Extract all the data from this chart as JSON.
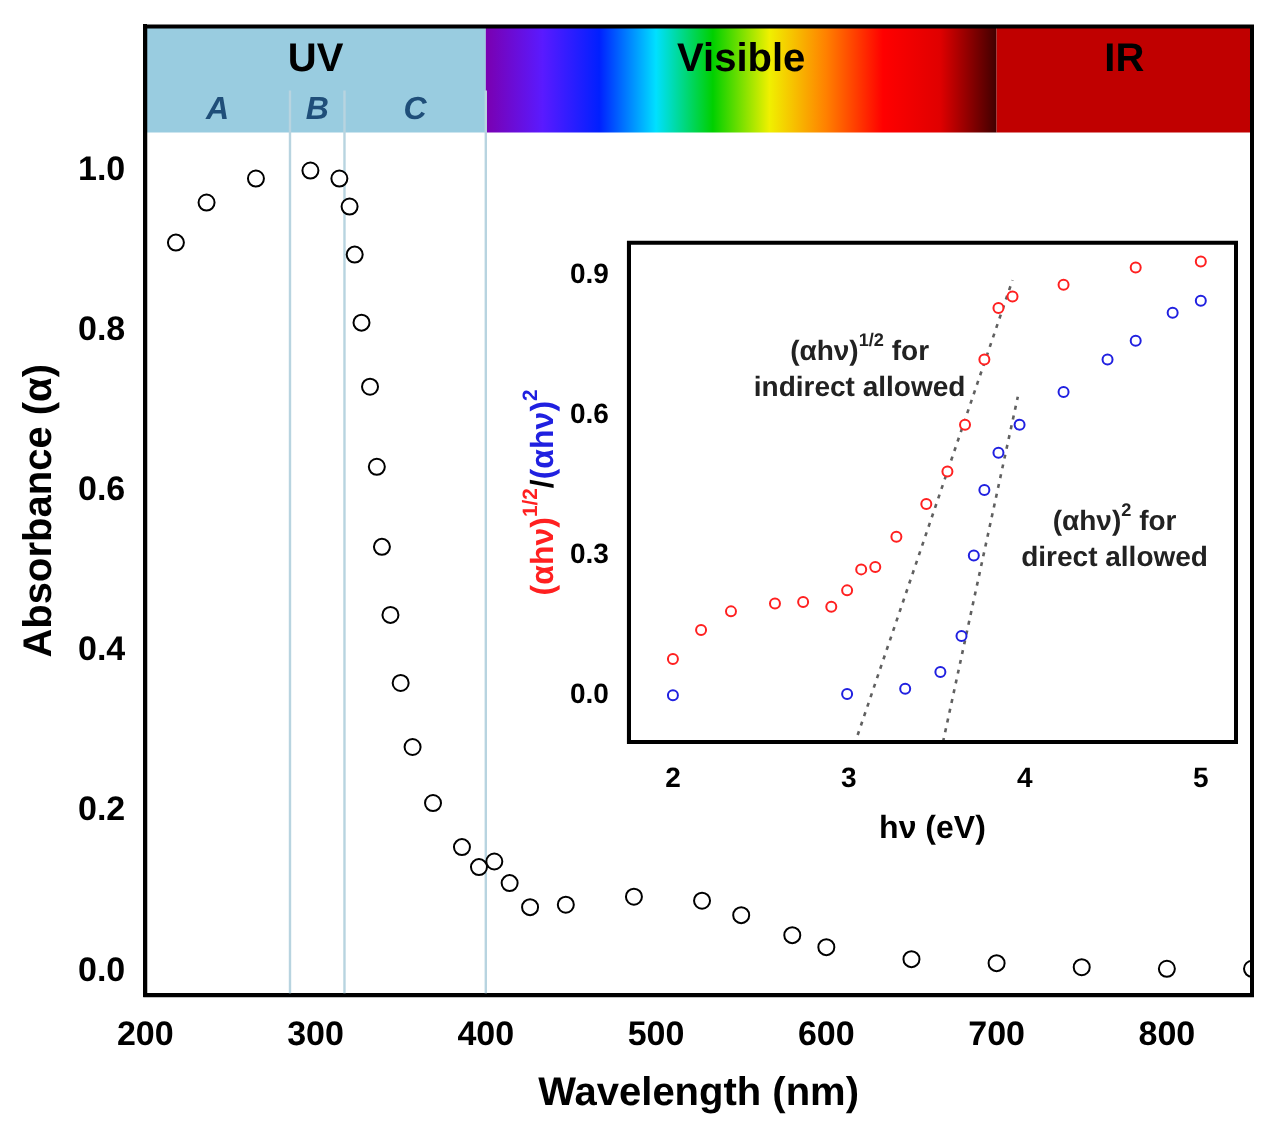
{
  "chart_data": [
    {
      "type": "scatter",
      "xlabel": "Wavelength (nm)",
      "ylabel": "Absorbance (α)",
      "xlim": [
        200,
        850
      ],
      "ylim": [
        -0.03,
        1.18
      ],
      "xticks": [
        200,
        300,
        400,
        500,
        600,
        700,
        800
      ],
      "yticks": [
        {
          "value": 0,
          "label": "0.0"
        },
        {
          "value": 0.2,
          "label": "0.2"
        },
        {
          "value": 0.4,
          "label": "0.4"
        },
        {
          "value": 0.6,
          "label": "0.6"
        },
        {
          "value": 0.8,
          "label": "0.8"
        },
        {
          "value": 1,
          "label": "1.0"
        }
      ],
      "marker": "circle",
      "series": [
        {
          "color": "#000000",
          "x": [
            218,
            236,
            265,
            297,
            314,
            320,
            323,
            327,
            332,
            336,
            339,
            344,
            350,
            357,
            369,
            386,
            396,
            405,
            414,
            426,
            447,
            487,
            527,
            550,
            580,
            600,
            650,
            700,
            750,
            800,
            850
          ],
          "values": [
            0.91,
            0.96,
            0.99,
            1.0,
            0.99,
            0.955,
            0.895,
            0.81,
            0.73,
            0.63,
            0.53,
            0.445,
            0.36,
            0.28,
            0.21,
            0.155,
            0.13,
            0.137,
            0.11,
            0.08,
            0.083,
            0.093,
            0.088,
            0.07,
            0.045,
            0.03,
            0.015,
            0.01,
            0.005,
            0.003,
            0.003
          ]
        }
      ],
      "bands": [
        {
          "axis": "x",
          "from": 200,
          "to": 400,
          "label": "UV",
          "color": "#99cce0"
        },
        {
          "axis": "x",
          "from": 400,
          "to": 700,
          "label": "Visible"
        },
        {
          "axis": "x",
          "from": 700,
          "to": 850,
          "label": "IR",
          "color": "#c00000"
        }
      ],
      "ref_lines": [
        {
          "axis": "x",
          "value": 285,
          "color": "#b8d4e0"
        },
        {
          "axis": "x",
          "value": 317,
          "color": "#b8d4e0"
        },
        {
          "axis": "x",
          "value": 400,
          "color": "#b8d4e0"
        }
      ],
      "annotations": [
        "A",
        "B",
        "C"
      ]
    },
    {
      "type": "scatter",
      "xlabel": "hν (eV)",
      "ylabel": "(αhν)$^{1/2}$/(αhν)$^{2}$",
      "xlim": [
        1.75,
        5.2
      ],
      "ylim": [
        -0.1,
        0.97
      ],
      "xticks": [
        2,
        3,
        4,
        5
      ],
      "yticks": [
        {
          "value": 0,
          "label": "0.0"
        },
        0.3,
        0.6,
        0.9
      ],
      "marker": "circle",
      "series": [
        {
          "color": "#ff2020",
          "x": [
            2.0,
            2.16,
            2.33,
            2.58,
            2.74,
            2.9,
            2.99,
            3.07,
            3.15,
            3.27,
            3.44,
            3.56,
            3.66,
            3.77,
            3.85,
            3.93,
            4.22,
            4.63,
            5.0
          ],
          "values": [
            0.078,
            0.14,
            0.18,
            0.197,
            0.2,
            0.19,
            0.225,
            0.27,
            0.275,
            0.34,
            0.41,
            0.48,
            0.58,
            0.72,
            0.83,
            0.855,
            0.88,
            0.917,
            0.93
          ]
        },
        {
          "color": "#2020e0",
          "x": [
            2.0,
            2.99,
            3.32,
            3.52,
            3.64,
            3.71,
            3.77,
            3.85,
            3.97,
            4.22,
            4.47,
            4.63,
            4.84,
            5.0
          ],
          "values": [
            0.0,
            0.003,
            0.014,
            0.05,
            0.127,
            0.3,
            0.44,
            0.52,
            0.58,
            0.65,
            0.72,
            0.76,
            0.82,
            0.846
          ]
        },
        {
          "type": "line",
          "color": "#606060",
          "line_style": "dotted",
          "marker": "none",
          "x": [
            3.05,
            3.93
          ],
          "values": [
            -0.085,
            0.89
          ]
        },
        {
          "type": "line",
          "color": "#606060",
          "line_style": "dotted",
          "marker": "none",
          "x": [
            3.535,
            3.96
          ],
          "values": [
            -0.1,
            0.64
          ]
        }
      ],
      "annotations": [
        "(αhν)$^{1/2}$ for\nindirect allowed",
        "(αhν)$^{2}$ for\ndirect allowed"
      ]
    }
  ]
}
